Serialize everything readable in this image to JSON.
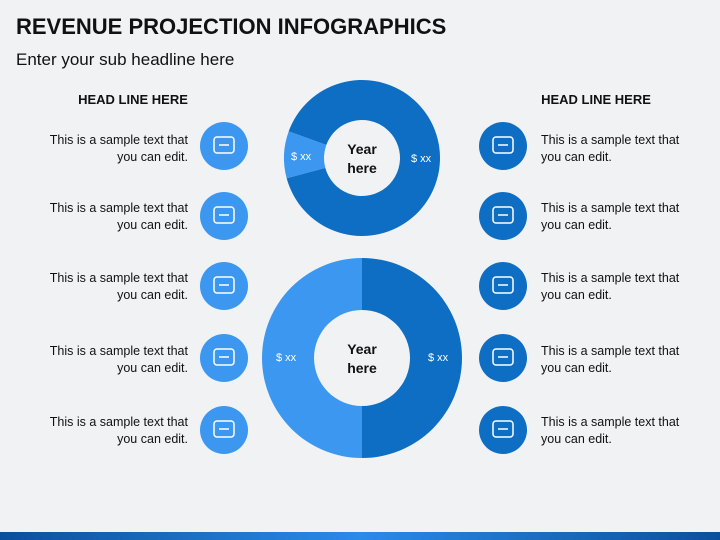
{
  "header": {
    "title": "REVENUE PROJECTION INFOGRAPHICS",
    "subtitle": "Enter your sub headline here"
  },
  "left": {
    "heading": "HEAD LINE HERE",
    "items": [
      "This is a sample text that you can edit.",
      "This is a sample text that you can edit.",
      "This is a sample text that you can edit.",
      "This is a sample text that you can edit.",
      "This is a sample text that you can edit."
    ]
  },
  "right": {
    "heading": "HEAD LINE HERE",
    "items": [
      "This is a sample text that you can edit.",
      "This is a sample text that you can edit.",
      "This is a sample text that you can edit.",
      "This is a sample text that you can edit.",
      "This is a sample text that you can edit."
    ]
  },
  "top_donut": {
    "center": "Year here",
    "left_label": "$ xx",
    "right_label": "$ xx"
  },
  "bottom_donut": {
    "center": "Year here",
    "left_label": "$ xx",
    "right_label": "$ xx"
  }
}
